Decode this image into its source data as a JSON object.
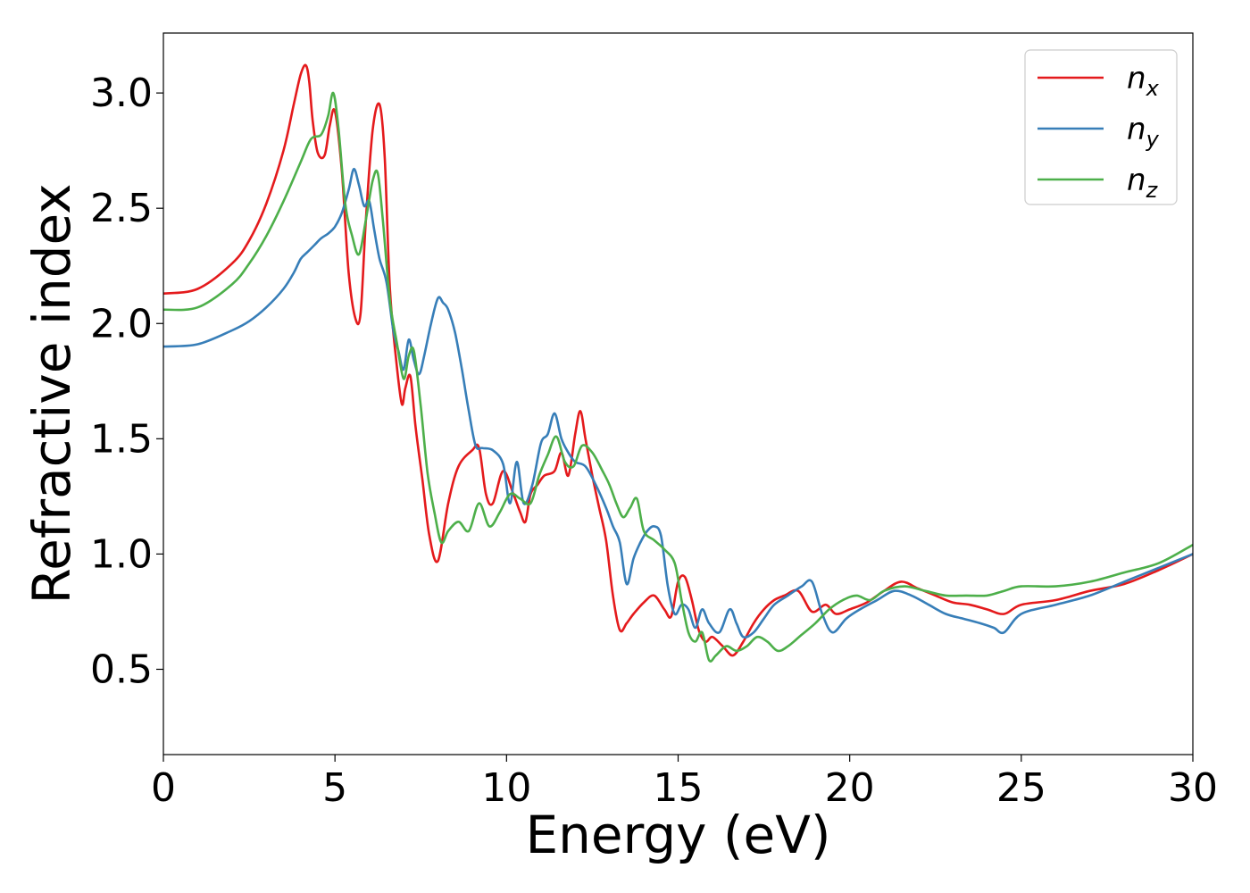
{
  "chart_data": {
    "type": "line",
    "xlabel": "Energy (eV)",
    "ylabel": "Refractive index",
    "xlim": [
      0,
      30
    ],
    "ylim": [
      0.13,
      3.26
    ],
    "x_ticks": [
      0,
      5,
      10,
      15,
      20,
      25,
      30
    ],
    "y_ticks": [
      0.5,
      1.0,
      1.5,
      2.0,
      2.5,
      3.0
    ],
    "x_tick_labels": [
      "0",
      "5",
      "10",
      "15",
      "20",
      "25",
      "30"
    ],
    "y_tick_labels": [
      "0.5",
      "1.0",
      "1.5",
      "2.0",
      "2.5",
      "3.0"
    ],
    "grid": false,
    "legend_position": "top-right",
    "series": [
      {
        "name": "n",
        "subscript": "x",
        "color": "#e41a1c",
        "x": [
          0,
          1,
          2,
          2.5,
          3,
          3.5,
          3.8,
          4.0,
          4.15,
          4.25,
          4.35,
          4.5,
          4.7,
          4.85,
          5.0,
          5.2,
          5.4,
          5.6,
          5.75,
          5.9,
          6.1,
          6.3,
          6.45,
          6.6,
          6.8,
          6.95,
          7.05,
          7.2,
          7.35,
          7.55,
          7.75,
          8.0,
          8.3,
          8.6,
          9.0,
          9.2,
          9.4,
          9.6,
          9.9,
          10.2,
          10.4,
          10.55,
          10.7,
          10.9,
          11.1,
          11.4,
          11.6,
          11.8,
          12.0,
          12.15,
          12.3,
          12.5,
          12.7,
          12.9,
          13.1,
          13.3,
          13.5,
          13.7,
          14.0,
          14.3,
          14.6,
          14.8,
          15.0,
          15.2,
          15.4,
          15.6,
          15.8,
          16.0,
          16.3,
          16.6,
          16.9,
          17.2,
          17.5,
          17.8,
          18.1,
          18.5,
          18.9,
          19.3,
          19.6,
          20.0,
          20.5,
          21.0,
          21.5,
          22.0,
          22.5,
          23.0,
          23.5,
          24.0,
          24.5,
          25.0,
          26.0,
          27.0,
          28.0,
          29.0,
          30.0
        ],
        "y": [
          2.13,
          2.15,
          2.26,
          2.36,
          2.52,
          2.75,
          2.95,
          3.08,
          3.12,
          3.05,
          2.88,
          2.74,
          2.73,
          2.86,
          2.92,
          2.66,
          2.22,
          2.02,
          2.05,
          2.45,
          2.84,
          2.95,
          2.72,
          2.15,
          1.82,
          1.65,
          1.72,
          1.77,
          1.55,
          1.32,
          1.08,
          0.97,
          1.22,
          1.38,
          1.45,
          1.46,
          1.26,
          1.22,
          1.36,
          1.26,
          1.18,
          1.14,
          1.26,
          1.3,
          1.34,
          1.36,
          1.44,
          1.34,
          1.52,
          1.62,
          1.5,
          1.34,
          1.2,
          1.06,
          0.82,
          0.67,
          0.7,
          0.74,
          0.79,
          0.82,
          0.76,
          0.73,
          0.88,
          0.9,
          0.8,
          0.67,
          0.62,
          0.64,
          0.6,
          0.56,
          0.62,
          0.7,
          0.76,
          0.8,
          0.82,
          0.84,
          0.75,
          0.78,
          0.74,
          0.76,
          0.79,
          0.84,
          0.88,
          0.85,
          0.82,
          0.79,
          0.78,
          0.76,
          0.74,
          0.78,
          0.8,
          0.84,
          0.87,
          0.93,
          1.0
        ]
      },
      {
        "name": "n",
        "subscript": "y",
        "color": "#377eb8",
        "x": [
          0,
          1,
          2,
          2.5,
          3,
          3.5,
          3.8,
          4.0,
          4.2,
          4.4,
          4.6,
          4.8,
          5.0,
          5.2,
          5.4,
          5.55,
          5.7,
          5.85,
          6.0,
          6.15,
          6.3,
          6.5,
          6.7,
          6.85,
          7.0,
          7.15,
          7.3,
          7.45,
          7.6,
          7.8,
          8.0,
          8.15,
          8.3,
          8.5,
          8.7,
          8.9,
          9.1,
          9.3,
          9.6,
          9.9,
          10.1,
          10.3,
          10.5,
          10.75,
          11.0,
          11.2,
          11.4,
          11.6,
          11.8,
          12.0,
          12.3,
          12.6,
          12.9,
          13.1,
          13.3,
          13.5,
          13.7,
          13.9,
          14.1,
          14.3,
          14.5,
          14.7,
          14.9,
          15.1,
          15.3,
          15.5,
          15.7,
          15.9,
          16.2,
          16.5,
          16.7,
          16.9,
          17.2,
          17.5,
          17.8,
          18.2,
          18.6,
          18.9,
          19.2,
          19.5,
          19.9,
          20.3,
          20.8,
          21.3,
          21.8,
          22.3,
          22.8,
          23.3,
          23.8,
          24.2,
          24.5,
          25.0,
          26.0,
          27.0,
          28.0,
          29.0,
          30.0
        ],
        "y": [
          1.9,
          1.91,
          1.97,
          2.01,
          2.07,
          2.15,
          2.22,
          2.28,
          2.31,
          2.34,
          2.37,
          2.39,
          2.42,
          2.48,
          2.58,
          2.67,
          2.6,
          2.51,
          2.53,
          2.4,
          2.28,
          2.18,
          1.97,
          1.88,
          1.8,
          1.93,
          1.84,
          1.78,
          1.86,
          2.0,
          2.11,
          2.09,
          2.06,
          1.96,
          1.8,
          1.62,
          1.47,
          1.46,
          1.45,
          1.39,
          1.22,
          1.4,
          1.22,
          1.3,
          1.48,
          1.52,
          1.61,
          1.5,
          1.44,
          1.4,
          1.38,
          1.3,
          1.2,
          1.12,
          1.05,
          0.87,
          0.98,
          1.05,
          1.1,
          1.12,
          1.08,
          0.86,
          0.74,
          0.78,
          0.76,
          0.68,
          0.76,
          0.7,
          0.66,
          0.76,
          0.7,
          0.64,
          0.66,
          0.72,
          0.78,
          0.82,
          0.86,
          0.88,
          0.74,
          0.66,
          0.72,
          0.76,
          0.8,
          0.84,
          0.82,
          0.78,
          0.74,
          0.72,
          0.7,
          0.68,
          0.66,
          0.74,
          0.78,
          0.82,
          0.88,
          0.94,
          1.0
        ]
      },
      {
        "name": "n",
        "subscript": "z",
        "color": "#4daf4a",
        "x": [
          0,
          1,
          2,
          2.5,
          3,
          3.5,
          4.0,
          4.3,
          4.6,
          4.8,
          4.95,
          5.1,
          5.3,
          5.5,
          5.7,
          5.9,
          6.1,
          6.25,
          6.4,
          6.6,
          6.8,
          7.0,
          7.15,
          7.3,
          7.5,
          7.7,
          7.9,
          8.1,
          8.3,
          8.6,
          8.9,
          9.2,
          9.5,
          9.8,
          10.1,
          10.4,
          10.7,
          10.95,
          11.2,
          11.45,
          11.7,
          11.95,
          12.2,
          12.5,
          12.8,
          13.0,
          13.2,
          13.4,
          13.6,
          13.8,
          14.0,
          14.3,
          14.6,
          14.9,
          15.1,
          15.3,
          15.5,
          15.7,
          15.9,
          16.1,
          16.4,
          16.7,
          17.0,
          17.3,
          17.6,
          17.9,
          18.2,
          18.6,
          19.0,
          19.4,
          19.8,
          20.2,
          20.6,
          21.0,
          21.6,
          22.2,
          22.8,
          23.4,
          24.0,
          24.5,
          25.0,
          26.0,
          27.0,
          28.0,
          29.0,
          30.0
        ],
        "y": [
          2.06,
          2.07,
          2.17,
          2.26,
          2.38,
          2.53,
          2.7,
          2.8,
          2.82,
          2.9,
          3.0,
          2.85,
          2.52,
          2.38,
          2.3,
          2.45,
          2.62,
          2.65,
          2.44,
          2.1,
          1.92,
          1.76,
          1.86,
          1.88,
          1.64,
          1.35,
          1.18,
          1.05,
          1.1,
          1.14,
          1.1,
          1.22,
          1.12,
          1.18,
          1.26,
          1.24,
          1.22,
          1.34,
          1.43,
          1.51,
          1.4,
          1.38,
          1.47,
          1.44,
          1.36,
          1.3,
          1.22,
          1.16,
          1.2,
          1.24,
          1.1,
          1.06,
          1.02,
          0.96,
          0.8,
          0.66,
          0.62,
          0.66,
          0.54,
          0.56,
          0.6,
          0.58,
          0.6,
          0.64,
          0.62,
          0.58,
          0.6,
          0.65,
          0.7,
          0.76,
          0.8,
          0.82,
          0.8,
          0.84,
          0.86,
          0.84,
          0.82,
          0.82,
          0.82,
          0.84,
          0.86,
          0.86,
          0.88,
          0.92,
          0.96,
          1.04
        ]
      }
    ]
  }
}
